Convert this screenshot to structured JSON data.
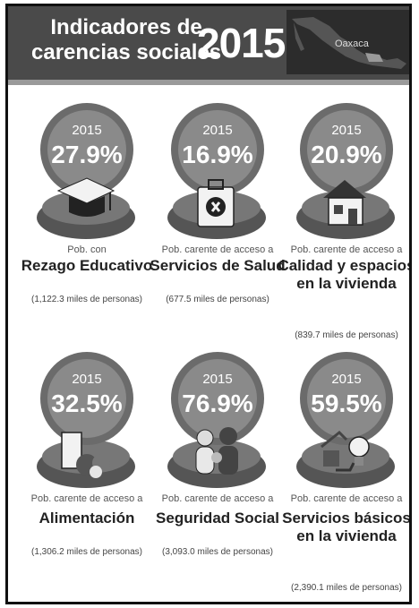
{
  "header": {
    "title_line1": "Indicadores de",
    "title_line2": "carencias sociales",
    "year": "2015",
    "state": "Oaxaca"
  },
  "cards": [
    {
      "year": "2015",
      "pct": "27.9%",
      "caption": "Pob. con",
      "name": "Rezago Educativo",
      "people": "(1,122.3  miles de personas)",
      "icon": "graduation-cap-icon"
    },
    {
      "year": "2015",
      "pct": "16.9%",
      "caption": "Pob. carente de acceso a",
      "name": "Servicios de Salud",
      "people": "(677.5 miles de personas)",
      "icon": "first-aid-kit-icon"
    },
    {
      "year": "2015",
      "pct": "20.9%",
      "caption": "Pob. carente de acceso a",
      "name": "Calidad y espacios en la vivienda",
      "people": "(839.7 miles de personas)",
      "icon": "house-icon"
    },
    {
      "year": "2015",
      "pct": "32.5%",
      "caption": "Pob. carente de acceso a",
      "name": "Alimentación",
      "people": "(1,306.2 miles de personas)",
      "icon": "food-icon"
    },
    {
      "year": "2015",
      "pct": "76.9%",
      "caption": "Pob. carente de acceso a",
      "name": "Seguridad Social",
      "people": "(3,093.0 miles de personas)",
      "icon": "family-icon"
    },
    {
      "year": "2015",
      "pct": "59.5%",
      "caption": "Pob. carente de acceso a",
      "name": "Servicios básicos en la vivienda",
      "people": "(2,390.1 miles de personas)",
      "icon": "utilities-icon"
    }
  ]
}
